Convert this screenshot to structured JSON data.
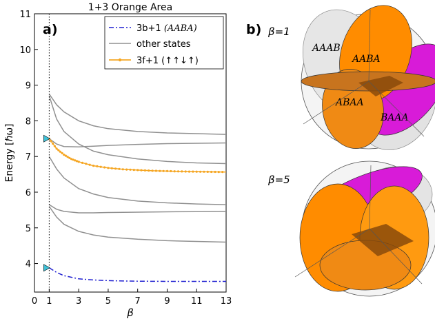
{
  "panel_a": {
    "title": "1+3 Orange Area",
    "label": "a)"
  },
  "panel_b": {
    "label": "b)",
    "beta1_label": "β=1",
    "beta5_label": "β=5",
    "region_labels": [
      "AAAB",
      "AABA",
      "ABAA",
      "BAAA"
    ],
    "colors": {
      "orange": "#ff8c00",
      "magenta": "#d81bd8",
      "grey": "#bdbdbd"
    }
  },
  "chart_data": {
    "type": "line",
    "title": "1+3 Orange Area",
    "xlabel": "β",
    "ylabel": "Energy [ℏω]",
    "xlim": [
      0,
      13
    ],
    "ylim": [
      3.2,
      11
    ],
    "xticks": [
      0,
      1,
      3,
      5,
      7,
      9,
      11,
      13
    ],
    "yticks": [
      4,
      5,
      6,
      7,
      8,
      9,
      10,
      11
    ],
    "vline_x": 1,
    "legend_placement": "top-right",
    "series": [
      {
        "name": "3b+1 (AABA)",
        "color": "#1f1fd0",
        "style": "dashdot",
        "x": [
          1,
          1.5,
          2,
          3,
          4,
          5,
          6,
          7,
          9,
          11,
          13
        ],
        "y": [
          3.88,
          3.75,
          3.66,
          3.57,
          3.54,
          3.52,
          3.51,
          3.505,
          3.5,
          3.5,
          3.5
        ]
      },
      {
        "name": "other states",
        "color": "#909090",
        "style": "solid",
        "x": [
          1,
          1.5,
          2,
          3,
          4,
          5,
          7,
          9,
          11,
          13
        ],
        "y": [
          8.75,
          8.45,
          8.25,
          8.0,
          7.86,
          7.78,
          7.7,
          7.66,
          7.64,
          7.62
        ]
      },
      {
        "name": "",
        "color": "#909090",
        "style": "solid",
        "x": [
          1,
          1.5,
          2,
          3,
          4,
          5,
          7,
          9,
          11,
          13
        ],
        "y": [
          8.7,
          8.05,
          7.7,
          7.35,
          7.15,
          7.05,
          6.93,
          6.86,
          6.82,
          6.8
        ]
      },
      {
        "name": "",
        "color": "#909090",
        "style": "solid",
        "x": [
          1,
          1.5,
          2,
          3,
          4,
          5,
          7,
          9,
          11,
          13
        ],
        "y": [
          7.5,
          7.35,
          7.28,
          7.27,
          7.29,
          7.31,
          7.34,
          7.36,
          7.37,
          7.38
        ]
      },
      {
        "name": "",
        "color": "#909090",
        "style": "solid",
        "x": [
          1,
          1.5,
          2,
          3,
          4,
          5,
          7,
          9,
          11,
          13
        ],
        "y": [
          7.0,
          6.65,
          6.4,
          6.1,
          5.95,
          5.85,
          5.75,
          5.7,
          5.67,
          5.65
        ]
      },
      {
        "name": "",
        "color": "#909090",
        "style": "solid",
        "x": [
          1,
          1.5,
          2,
          3,
          4,
          5,
          7,
          9,
          11,
          13
        ],
        "y": [
          5.65,
          5.52,
          5.46,
          5.42,
          5.42,
          5.43,
          5.44,
          5.45,
          5.455,
          5.46
        ]
      },
      {
        "name": "",
        "color": "#909090",
        "style": "solid",
        "x": [
          1,
          1.5,
          2,
          3,
          4,
          5,
          7,
          9,
          11,
          13
        ],
        "y": [
          5.6,
          5.3,
          5.1,
          4.9,
          4.8,
          4.74,
          4.68,
          4.64,
          4.62,
          4.6
        ]
      },
      {
        "name": "3f+1 (↑↑↓↑)",
        "color": "#f5a623",
        "style": "dotted-marker",
        "x": [
          1,
          1.5,
          2,
          2.5,
          3,
          4,
          5,
          6,
          7,
          8,
          9,
          10,
          11,
          12,
          13
        ],
        "y": [
          7.5,
          7.22,
          7.05,
          6.93,
          6.85,
          6.74,
          6.68,
          6.64,
          6.62,
          6.6,
          6.59,
          6.58,
          6.575,
          6.57,
          6.565
        ]
      }
    ],
    "markers": [
      {
        "x": 1,
        "y": 7.5,
        "color": "#3fc0d6",
        "shape": "triangle"
      },
      {
        "x": 1,
        "y": 3.88,
        "color": "#3fc0d6",
        "shape": "triangle"
      }
    ]
  }
}
